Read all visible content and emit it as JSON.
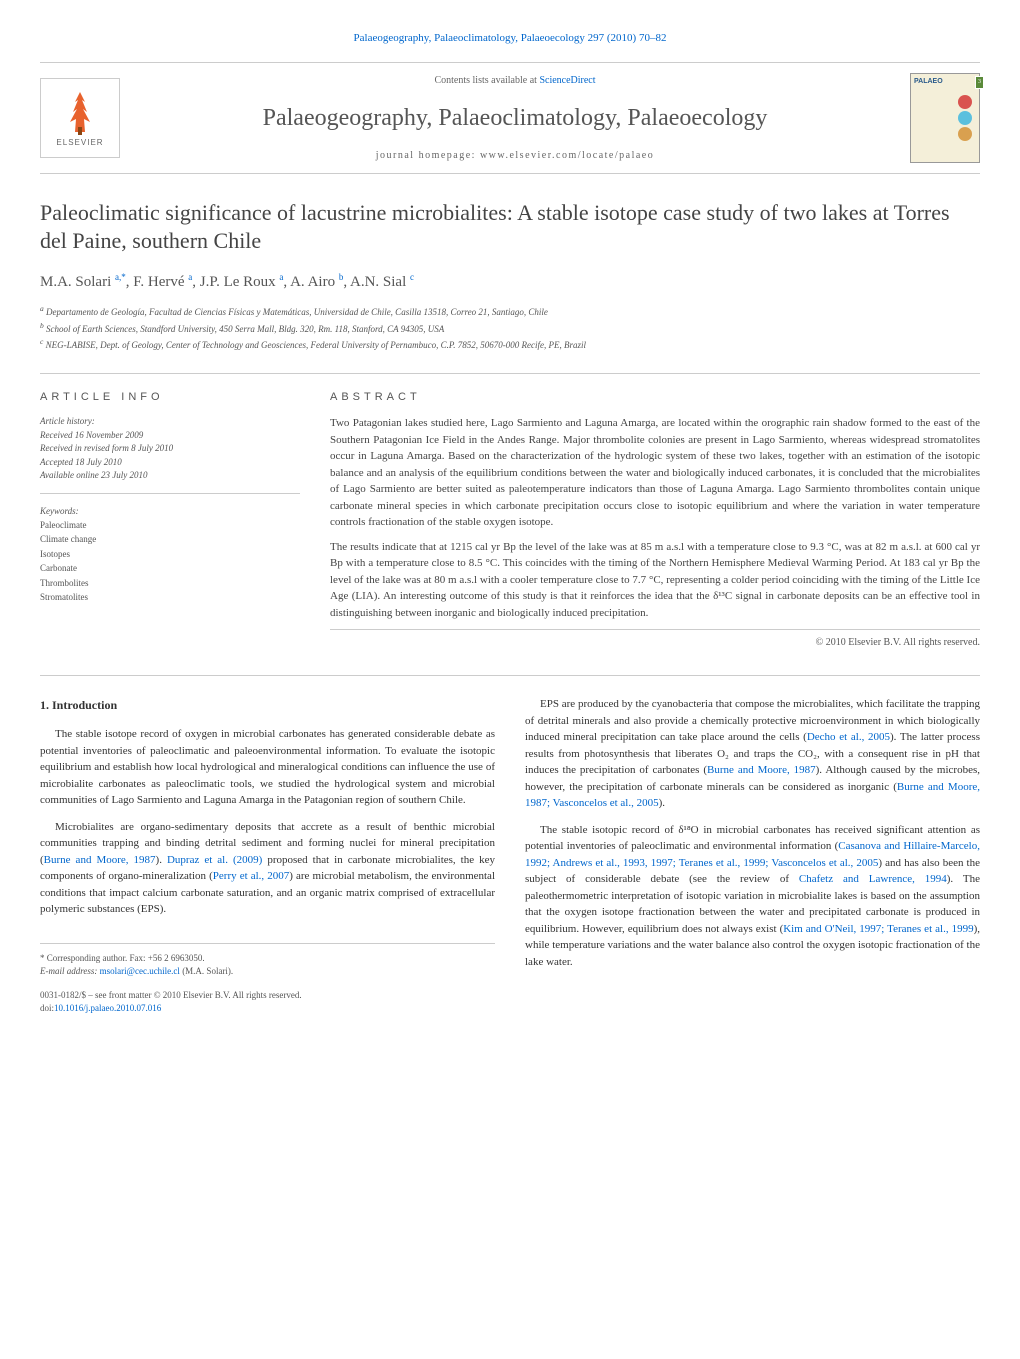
{
  "header": {
    "top_link": "Palaeogeography, Palaeoclimatology, Palaeoecology 297 (2010) 70–82",
    "sciencedirect_prefix": "Contents lists available at ",
    "sciencedirect_link": "ScienceDirect",
    "journal_name": "Palaeogeography, Palaeoclimatology, Palaeoecology",
    "homepage_label": "journal homepage: www.elsevier.com/locate/palaeo",
    "elsevier_label": "ELSEVIER",
    "cover_title": "PALAEO",
    "cover_badge": "3"
  },
  "article": {
    "title": "Paleoclimatic significance of lacustrine microbialites: A stable isotope case study of two lakes at Torres del Paine, southern Chile",
    "authors_html": "M.A. Solari <sup>a,*</sup>, F. Hervé <sup>a</sup>, J.P. Le Roux <sup>a</sup>, A. Airo <sup>b</sup>, A.N. Sial <sup>c</sup>",
    "affiliations": {
      "a": "Departamento de Geología, Facultad de Ciencias Físicas y Matemáticas, Universidad de Chile, Casilla 13518, Correo 21, Santiago, Chile",
      "b": "School of Earth Sciences, Standford University, 450 Serra Mall, Bldg. 320, Rm. 118, Stanford, CA 94305, USA",
      "c": "NEG-LABISE, Dept. of Geology, Center of Technology and Geosciences, Federal University of Pernambuco, C.P. 7852, 50670-000 Recife, PE, Brazil"
    }
  },
  "info": {
    "heading": "ARTICLE INFO",
    "history_label": "Article history:",
    "received": "Received 16 November 2009",
    "revised": "Received in revised form 8 July 2010",
    "accepted": "Accepted 18 July 2010",
    "online": "Available online 23 July 2010",
    "keywords_label": "Keywords:",
    "keywords": [
      "Paleoclimate",
      "Climate change",
      "Isotopes",
      "Carbonate",
      "Thrombolites",
      "Stromatolites"
    ]
  },
  "abstract": {
    "heading": "ABSTRACT",
    "p1": "Two Patagonian lakes studied here, Lago Sarmiento and Laguna Amarga, are located within the orographic rain shadow formed to the east of the Southern Patagonian Ice Field in the Andes Range. Major thrombolite colonies are present in Lago Sarmiento, whereas widespread stromatolites occur in Laguna Amarga. Based on the characterization of the hydrologic system of these two lakes, together with an estimation of the isotopic balance and an analysis of the equilibrium conditions between the water and biologically induced carbonates, it is concluded that the microbialites of Lago Sarmiento are better suited as paleotemperature indicators than those of Laguna Amarga. Lago Sarmiento thrombolites contain unique carbonate mineral species in which carbonate precipitation occurs close to isotopic equilibrium and where the variation in water temperature controls fractionation of the stable oxygen isotope.",
    "p2": "The results indicate that at 1215 cal yr Bp the level of the lake was at 85 m a.s.l with a temperature close to 9.3 °C, was at 82 m a.s.l. at 600 cal yr Bp with a temperature close to 8.5 °C. This coincides with the timing of the Northern Hemisphere Medieval Warming Period. At 183 cal yr Bp the level of the lake was at 80 m a.s.l with a cooler temperature close to 7.7 °C, representing a colder period coinciding with the timing of the Little Ice Age (LIA). An interesting outcome of this study is that it reinforces the idea that the δ¹³C signal in carbonate deposits can be an effective tool in distinguishing between inorganic and biologically induced precipitation.",
    "copyright": "© 2010 Elsevier B.V. All rights reserved."
  },
  "body": {
    "section_num": "1.",
    "section_title": "Introduction",
    "col1_p1": "The stable isotope record of oxygen in microbial carbonates has generated considerable debate as potential inventories of paleoclimatic and paleoenvironmental information. To evaluate the isotopic equilibrium and establish how local hydrological and mineralogical conditions can influence the use of microbialite carbonates as paleoclimatic tools, we studied the hydrological system and microbial communities of Lago Sarmiento and Laguna Amarga in the Patagonian region of southern Chile.",
    "col1_p2_html": "Microbialites are organo-sedimentary deposits that accrete as a result of benthic microbial communities trapping and binding detrital sediment and forming nuclei for mineral precipitation (<span class=\"citation-link\">Burne and Moore, 1987</span>). <span class=\"citation-link\">Dupraz et al. (2009)</span> proposed that in carbonate microbialites, the key components of organo-mineralization (<span class=\"citation-link\">Perry et al., 2007</span>) are microbial metabolism, the environmental conditions that impact calcium carbonate saturation, and an organic matrix comprised of extracellular polymeric substances (EPS).",
    "col2_p1_html": "EPS are produced by the cyanobacteria that compose the microbialites, which facilitate the trapping of detrital minerals and also provide a chemically protective microenvironment in which biologically induced mineral precipitation can take place around the cells (<span class=\"citation-link\">Decho et al., 2005</span>). The latter process results from photosynthesis that liberates O₂ and traps the CO₂, with a consequent rise in pH that induces the precipitation of carbonates (<span class=\"citation-link\">Burne and Moore, 1987</span>). Although caused by the microbes, however, the precipitation of carbonate minerals can be considered as inorganic (<span class=\"citation-link\">Burne and Moore, 1987; Vasconcelos et al., 2005</span>).",
    "col2_p2_html": "The stable isotopic record of δ¹⁸O in microbial carbonates has received significant attention as potential inventories of paleoclimatic and environmental information (<span class=\"citation-link\">Casanova and Hillaire-Marcelo, 1992; Andrews et al., 1993, 1997; Teranes et al., 1999; Vasconcelos et al., 2005</span>) and has also been the subject of considerable debate (see the review of <span class=\"citation-link\">Chafetz and Lawrence, 1994</span>). The paleothermometric interpretation of isotopic variation in microbialite lakes is based on the assumption that the oxygen isotope fractionation between the water and precipitated carbonate is produced in equilibrium. However, equilibrium does not always exist (<span class=\"citation-link\">Kim and O'Neil, 1997; Teranes et al., 1999</span>), while temperature variations and the water balance also control the oxygen isotopic fractionation of the lake water."
  },
  "footer": {
    "corresponding": "* Corresponding author. Fax: +56 2 6963050.",
    "email_label": "E-mail address: ",
    "email": "msolari@cec.uchile.cl",
    "email_suffix": " (M.A. Solari).",
    "issn": "0031-0182/$ – see front matter © 2010 Elsevier B.V. All rights reserved.",
    "doi_prefix": "doi:",
    "doi": "10.1016/j.palaeo.2010.07.016"
  },
  "colors": {
    "link": "#0066cc",
    "elsevier_orange": "#e8622d",
    "text": "#333333",
    "border": "#cccccc",
    "globe1": "#d9534f",
    "globe2": "#5bc0de",
    "globe3": "#d9a04f",
    "cover_bg": "#f4efd9"
  }
}
